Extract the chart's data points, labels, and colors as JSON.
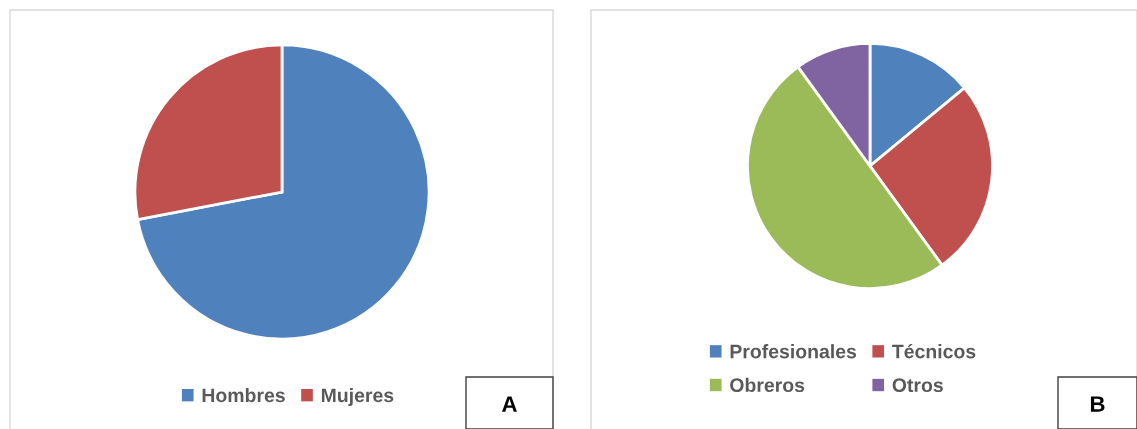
{
  "chart_data": [
    {
      "type": "pie",
      "categories": [
        "Hombres",
        "Mujeres"
      ],
      "values": [
        72,
        28
      ],
      "colors": [
        "#4f81bd",
        "#c0504d"
      ],
      "legend": "bottom",
      "annotations": [
        "A"
      ]
    },
    {
      "type": "pie",
      "categories": [
        "Profesionales",
        "Técnicos",
        "Obreros",
        "Otros"
      ],
      "values": [
        14,
        26,
        50,
        10
      ],
      "colors": [
        "#4f81bd",
        "#c0504d",
        "#9bbb59",
        "#8064a2"
      ],
      "legend": "bottom",
      "annotations": [
        "B"
      ]
    }
  ]
}
